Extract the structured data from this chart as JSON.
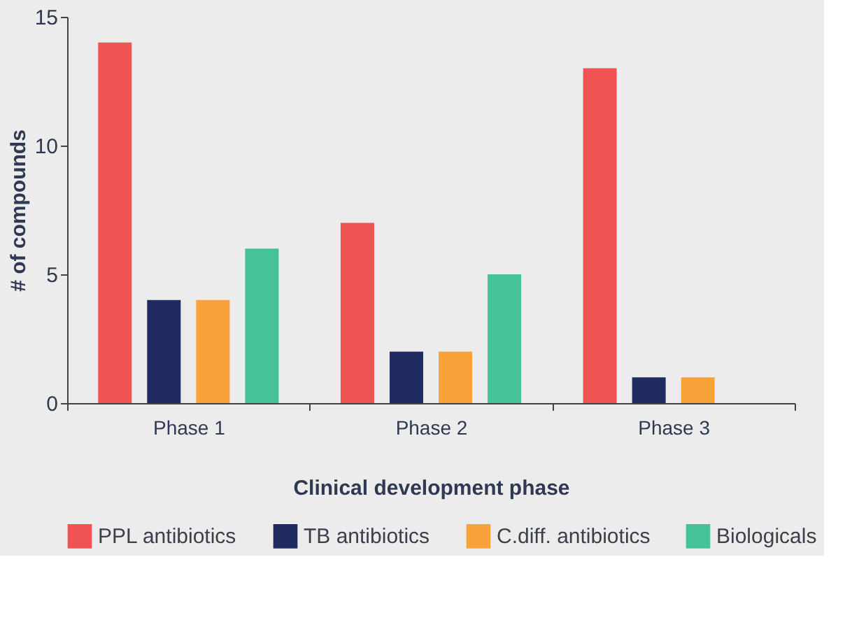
{
  "chart_data": {
    "type": "bar",
    "xlabel": "Clinical development phase",
    "ylabel": "# of compounds",
    "categories": [
      "Phase 1",
      "Phase 2",
      "Phase 3"
    ],
    "series": [
      {
        "name": "PPL antibiotics",
        "color": "#ef5354",
        "values": [
          14,
          7,
          13
        ]
      },
      {
        "name": "TB antibiotics",
        "color": "#1f2b5e",
        "values": [
          4,
          2,
          1
        ]
      },
      {
        "name": "C.diff. antibiotics",
        "color": "#f9a23a",
        "values": [
          4,
          2,
          1
        ]
      },
      {
        "name": "Biologicals",
        "color": "#46c297",
        "values": [
          6,
          5,
          null
        ]
      }
    ],
    "ylim": [
      0,
      15
    ],
    "yticks": [
      0,
      5,
      10,
      15
    ],
    "grid": false,
    "legend": "bottom"
  }
}
